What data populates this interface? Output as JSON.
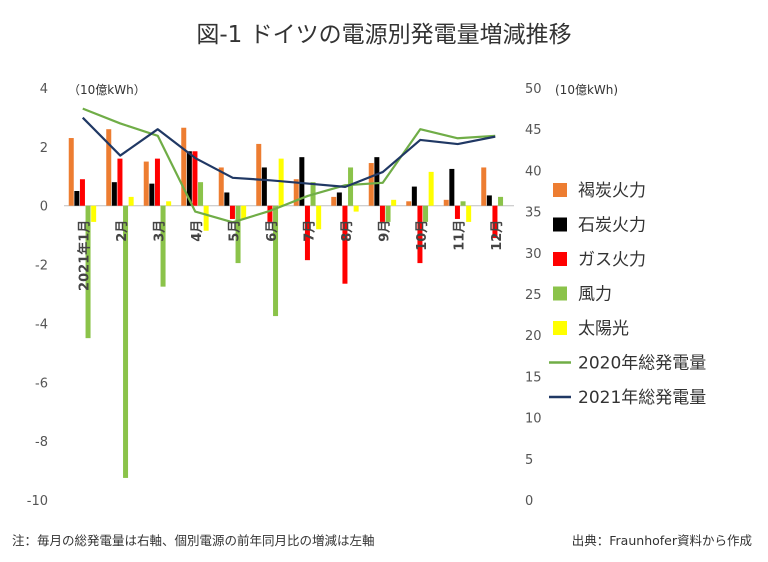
{
  "chart_data": {
    "type": "bar",
    "title": "図-1 ドイツの電源別発電量増減推移",
    "left_axis": {
      "unit": "（10億kWh）",
      "range": [
        -10,
        4
      ],
      "ticks": [
        "4",
        "2",
        "0",
        "-2",
        "-4",
        "-6",
        "-8",
        "-10"
      ]
    },
    "right_axis": {
      "unit": "(10億kWh)",
      "range": [
        0,
        50
      ],
      "ticks": [
        "50",
        "45",
        "40",
        "35",
        "30",
        "25",
        "20",
        "15",
        "10",
        "5",
        "0"
      ]
    },
    "categories": [
      "2021年1月",
      "2月",
      "3月",
      "4月",
      "5月",
      "6月",
      "7月",
      "8月",
      "9月",
      "10月",
      "11月",
      "12月"
    ],
    "bar_series": [
      {
        "name": "褐炭火力",
        "color": "#ED7D31",
        "values": [
          2.3,
          2.6,
          1.5,
          2.65,
          1.3,
          2.1,
          0.9,
          0.3,
          1.45,
          0.15,
          0.2,
          1.3
        ]
      },
      {
        "name": "石炭火力",
        "color": "#000000",
        "values": [
          0.5,
          0.8,
          0.75,
          1.85,
          0.45,
          1.3,
          1.65,
          0.45,
          1.65,
          0.65,
          1.25,
          0.35
        ]
      },
      {
        "name": "ガス火力",
        "color": "#FF0000",
        "values": [
          0.9,
          1.6,
          1.6,
          1.85,
          -0.45,
          -0.55,
          -1.85,
          -2.65,
          -0.55,
          -1.95,
          -0.45,
          -1.1
        ]
      },
      {
        "name": "風力",
        "color": "#8BC34A",
        "values": [
          -4.5,
          -9.25,
          -2.75,
          0.8,
          -1.95,
          -3.75,
          0.8,
          1.3,
          -0.55,
          -0.55,
          0.15,
          0.3
        ]
      },
      {
        "name": "太陽光",
        "color": "#FFFF00",
        "values": [
          -0.55,
          0.3,
          0.15,
          -0.85,
          -0.45,
          1.6,
          -0.8,
          -0.2,
          0.2,
          1.15,
          -0.55,
          0.0
        ]
      }
    ],
    "line_series": [
      {
        "name": "2020年総発電量",
        "color": "#70AD47",
        "values": [
          47.5,
          45.7,
          44.2,
          35.0,
          33.7,
          35.1,
          36.9,
          38.2,
          38.5,
          45.0,
          43.9,
          44.2
        ]
      },
      {
        "name": "2021年総発電量",
        "color": "#203864",
        "values": [
          46.4,
          41.8,
          45.0,
          41.5,
          39.1,
          38.8,
          38.4,
          38.0,
          39.8,
          43.7,
          43.2,
          44.1
        ]
      }
    ],
    "notes": {
      "left": "注：毎月の総発電量は右軸、個別電源の前年同月比の増減は左軸",
      "right": "出典：Fraunhofer資料から作成"
    }
  }
}
